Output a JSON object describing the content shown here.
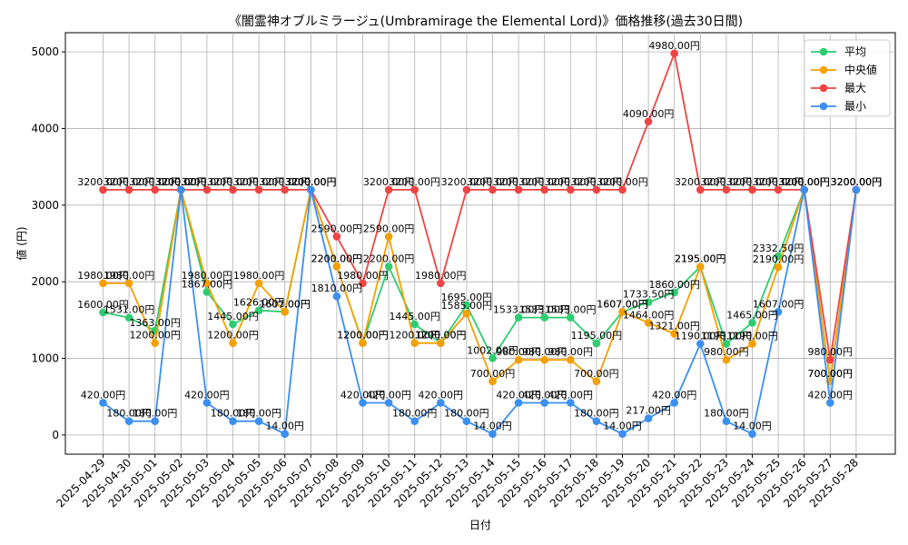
{
  "chart_data": {
    "type": "line",
    "title": "《闇霊神オブルミラージュ(Umbramirage the Elemental Lord)》価格推移(過去30日間)",
    "xlabel": "日付",
    "ylabel": "値 (円)",
    "ylim": [
      -250,
      5250
    ],
    "yticks": [
      0,
      1000,
      2000,
      3000,
      4000,
      5000
    ],
    "grid": true,
    "legend_position": "top-right",
    "value_suffix": "円",
    "categories": [
      "2025-04-29",
      "2025-04-30",
      "2025-05-01",
      "2025-05-02",
      "2025-05-03",
      "2025-05-04",
      "2025-05-05",
      "2025-05-06",
      "2025-05-07",
      "2025-05-08",
      "2025-05-09",
      "2025-05-10",
      "2025-05-11",
      "2025-05-12",
      "2025-05-13",
      "2025-05-14",
      "2025-05-15",
      "2025-05-16",
      "2025-05-17",
      "2025-05-18",
      "2025-05-19",
      "2025-05-20",
      "2025-05-21",
      "2025-05-22",
      "2025-05-23",
      "2025-05-24",
      "2025-05-25",
      "2025-05-26",
      "2025-05-27",
      "2025-05-28"
    ],
    "series": [
      {
        "name": "平均",
        "color": "#2ecc71",
        "values": [
          1600,
          1531,
          1363,
          3200,
          1867,
          1445,
          1626,
          1607,
          3200,
          2200,
          1200,
          2200,
          1445,
          1200,
          1695,
          1002,
          1533,
          1533,
          1533,
          1195,
          1607,
          1733.5,
          1860,
          2195,
          1190,
          1465,
          2332.5,
          3200,
          700,
          3200
        ]
      },
      {
        "name": "中央値",
        "color": "#f5a000",
        "values": [
          1980,
          1980,
          1200,
          3200,
          1980,
          1200,
          1980,
          1607,
          3200,
          2200,
          1200,
          2590,
          1200,
          1200,
          1585,
          700,
          980,
          980,
          980,
          700,
          1607,
          1464,
          1321,
          2195,
          980,
          1190,
          2190,
          3200,
          700,
          3200
        ]
      },
      {
        "name": "最大",
        "color": "#ef4444",
        "values": [
          3200,
          3200,
          3200,
          3200,
          3200,
          3200,
          3200,
          3200,
          3200,
          2590,
          1980,
          3200,
          3200,
          1980,
          3200,
          3200,
          3200,
          3200,
          3200,
          3200,
          3200,
          4090,
          4980,
          3200,
          3200,
          3200,
          3200,
          3200,
          980,
          3200
        ]
      },
      {
        "name": "最小",
        "color": "#3b8ff0",
        "values": [
          420,
          180,
          180,
          3200,
          420,
          180,
          180,
          14,
          3200,
          1810,
          420,
          420,
          180,
          420,
          180,
          14,
          420,
          420,
          420,
          180,
          14,
          217,
          420,
          1190,
          180,
          14,
          1607,
          3200,
          420,
          3200
        ]
      }
    ]
  }
}
